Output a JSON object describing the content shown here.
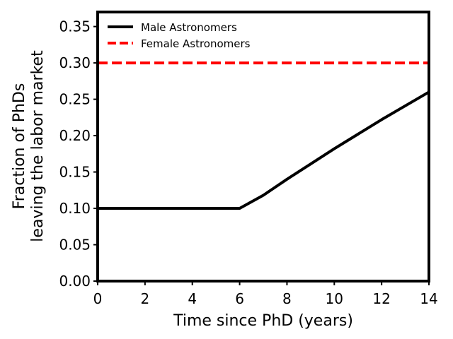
{
  "chart_data": {
    "type": "line",
    "xlabel": "Time since PhD (years)",
    "ylabel_lines": [
      "Fraction of PhDs",
      "leaving the labor market"
    ],
    "xlim": [
      0,
      14
    ],
    "ylim": [
      0,
      0.37
    ],
    "xticks": [
      0,
      2,
      4,
      6,
      8,
      10,
      12,
      14
    ],
    "yticks": [
      0.0,
      0.05,
      0.1,
      0.15,
      0.2,
      0.25,
      0.3,
      0.35
    ],
    "xtick_labels": [
      "0",
      "2",
      "4",
      "6",
      "8",
      "10",
      "12",
      "14"
    ],
    "ytick_labels": [
      "0.00",
      "0.05",
      "0.10",
      "0.15",
      "0.20",
      "0.25",
      "0.30",
      "0.35"
    ],
    "grid": false,
    "legend_position": "top-left",
    "series": [
      {
        "name": "Male Astronomers",
        "color": "#000000",
        "dash": "solid",
        "x": [
          0,
          1,
          2,
          3,
          4,
          5,
          6,
          7,
          8,
          9,
          10,
          11,
          12,
          13,
          14
        ],
        "y": [
          0.1,
          0.1,
          0.1,
          0.1,
          0.1,
          0.1,
          0.1,
          0.118,
          0.14,
          0.161,
          0.182,
          0.202,
          0.222,
          0.241,
          0.26
        ]
      },
      {
        "name": "Female Astronomers",
        "color": "#ff0000",
        "dash": "dashed",
        "x": [
          0,
          14
        ],
        "y": [
          0.3,
          0.3
        ]
      }
    ]
  }
}
